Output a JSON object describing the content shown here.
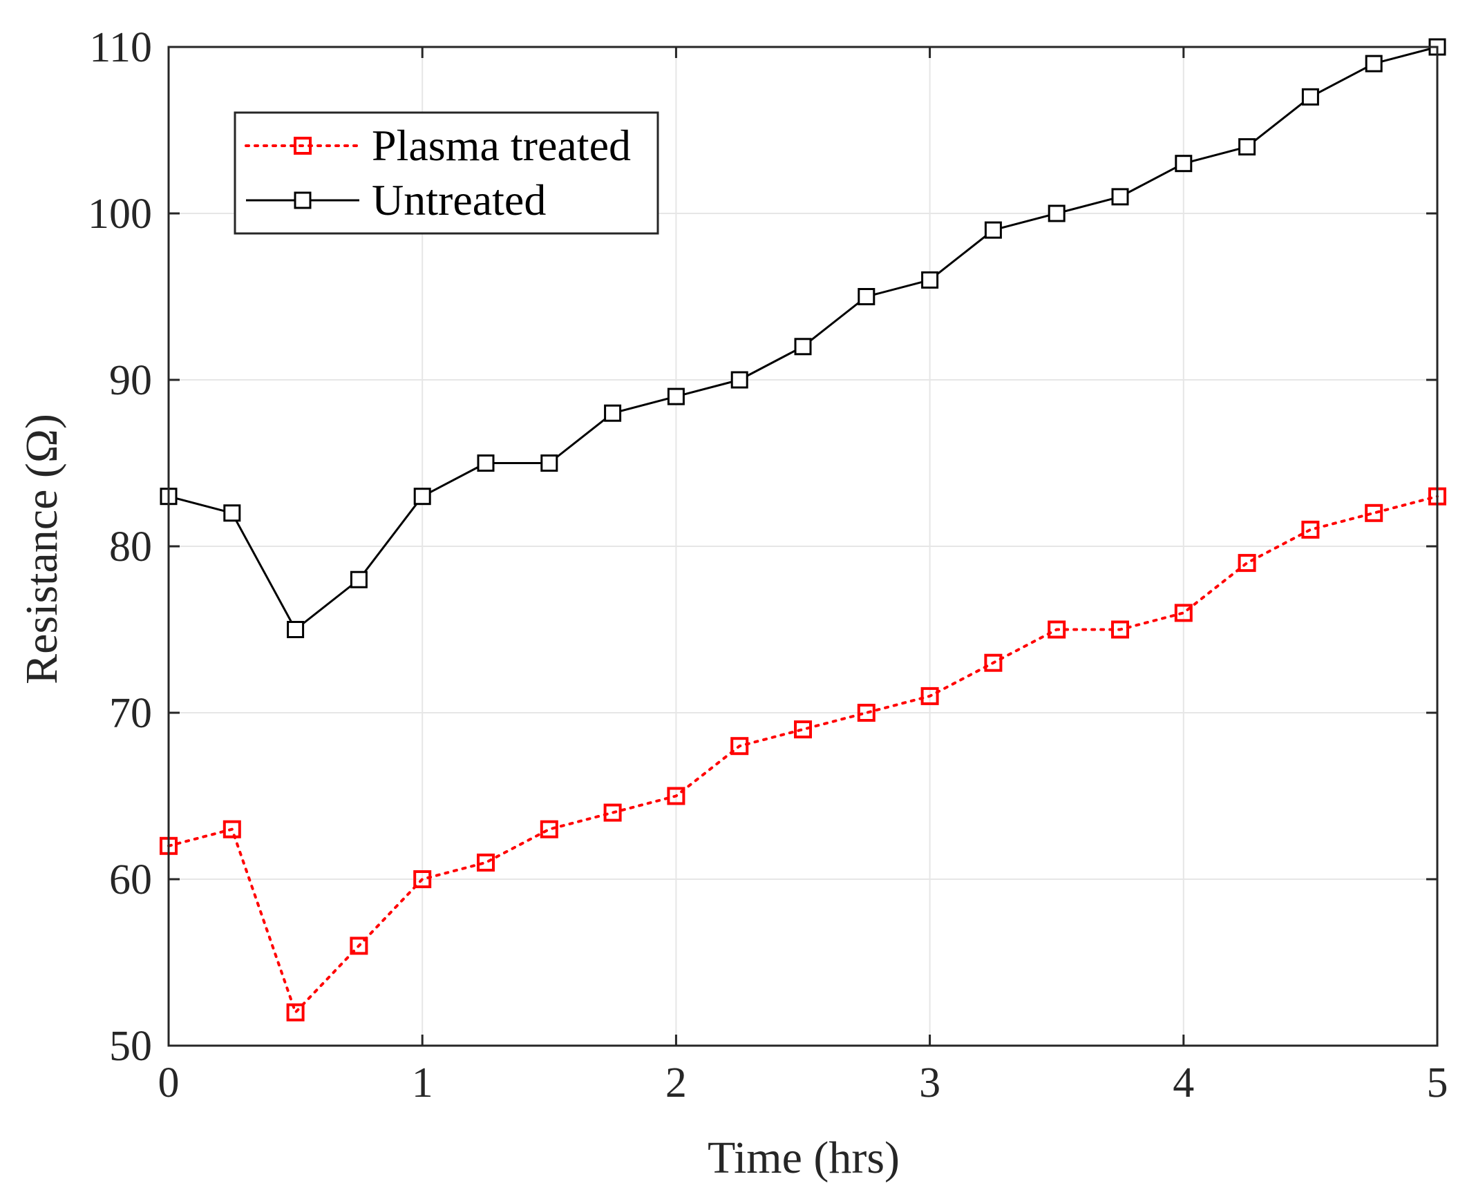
{
  "chart_data": {
    "type": "line",
    "title": "",
    "xlabel": "Time (hrs)",
    "ylabel": "Resistance (Ω)",
    "xlim": [
      0,
      5
    ],
    "ylim": [
      50,
      110
    ],
    "xticks": [
      0,
      1,
      2,
      3,
      4,
      5
    ],
    "yticks": [
      50,
      60,
      70,
      80,
      90,
      100,
      110
    ],
    "grid": true,
    "legend_position": "top-left",
    "x": [
      0,
      0.25,
      0.5,
      0.75,
      1,
      1.25,
      1.5,
      1.75,
      2,
      2.25,
      2.5,
      2.75,
      3,
      3.25,
      3.5,
      3.75,
      4,
      4.25,
      4.5,
      4.75,
      5
    ],
    "series": [
      {
        "name": "Plasma treated",
        "color": "#ff0000",
        "line_style": "dotted",
        "marker": "square",
        "values": [
          62,
          63,
          52,
          56,
          60,
          61,
          63,
          64,
          65,
          68,
          69,
          70,
          71,
          73,
          75,
          75,
          76,
          79,
          81,
          82,
          83
        ]
      },
      {
        "name": "Untreated",
        "color": "#000000",
        "line_style": "solid",
        "marker": "square",
        "values": [
          83,
          82,
          75,
          78,
          83,
          85,
          85,
          88,
          89,
          90,
          92,
          95,
          96,
          99,
          100,
          101,
          103,
          104,
          107,
          109,
          110
        ]
      }
    ]
  }
}
